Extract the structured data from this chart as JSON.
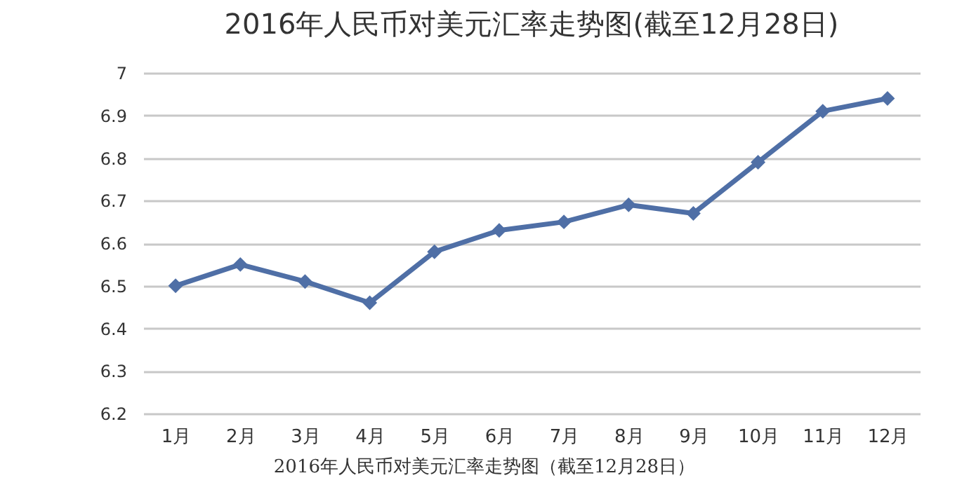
{
  "chart_data": {
    "type": "line",
    "title": "2016年人民币对美元汇率走势图(截至12月28日)",
    "categories": [
      "1月",
      "2月",
      "3月",
      "4月",
      "5月",
      "6月",
      "7月",
      "8月",
      "9月",
      "10月",
      "11月",
      "12月"
    ],
    "series": [
      {
        "color": "#4f6fa6",
        "values": [
          6.5,
          6.55,
          6.51,
          6.46,
          6.58,
          6.63,
          6.65,
          6.69,
          6.67,
          6.79,
          6.91,
          6.94
        ]
      }
    ],
    "ylim": [
      6.2,
      7
    ],
    "yticks": [
      6.2,
      6.3,
      6.4,
      6.5,
      6.6,
      6.7,
      6.8,
      6.9,
      7
    ],
    "grid": "y",
    "marker": "diamond",
    "line_style": "solid",
    "annotations": [
      "2016年人民币对美元汇率走势图（截至12月28日）"
    ]
  }
}
